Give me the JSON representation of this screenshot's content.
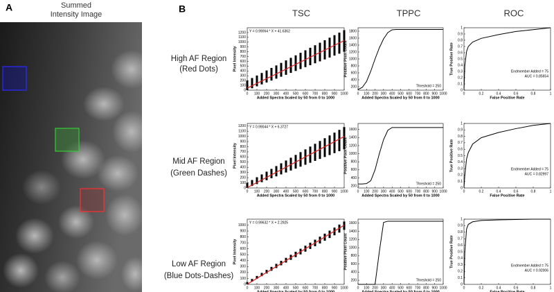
{
  "panel_a": {
    "letter": "A",
    "title": [
      "Summed",
      "Intensity Image"
    ]
  },
  "panel_b": {
    "letter": "B",
    "columns": [
      "TSC",
      "TPPC",
      "ROC"
    ],
    "rows": [
      {
        "label": [
          "High AF Region",
          "(Red Dots)"
        ]
      },
      {
        "label": [
          "Mid AF Region",
          "(Green Dashes)"
        ]
      },
      {
        "label": [
          "Low AF Region",
          "(Blue Dots-Dashes)"
        ]
      }
    ]
  },
  "chart_data": [
    {
      "type": "scatter",
      "xlabel": "Added Spectra Scaled by 50 from 0 to 1000",
      "ylabel": "Pixel Intensity",
      "annotations": [
        "Y = 0.99064 * X + 41.6362"
      ],
      "xlim": [
        0,
        1000
      ],
      "xticks": [
        0,
        100,
        200,
        300,
        400,
        500,
        600,
        700,
        800,
        900,
        1000
      ],
      "ylim": [
        0,
        1300
      ],
      "yticks": [
        0,
        100,
        200,
        300,
        400,
        500,
        600,
        700,
        800,
        900,
        1000,
        1100,
        1200
      ],
      "x": [
        0,
        50,
        100,
        150,
        200,
        250,
        300,
        350,
        400,
        450,
        500,
        550,
        600,
        650,
        700,
        750,
        800,
        850,
        900,
        950,
        1000
      ],
      "low": [
        0,
        40,
        80,
        120,
        160,
        200,
        240,
        280,
        320,
        360,
        400,
        440,
        480,
        520,
        560,
        600,
        640,
        680,
        720,
        760,
        800
      ],
      "high": [
        200,
        253,
        305,
        358,
        410,
        463,
        515,
        568,
        620,
        673,
        725,
        778,
        830,
        883,
        935,
        988,
        1040,
        1093,
        1145,
        1198,
        1250
      ],
      "fit_x": [
        0,
        1000
      ],
      "fit": [
        42,
        1033
      ],
      "color": "#000000",
      "fit_color": "#e02020"
    },
    {
      "type": "line",
      "xlabel": "Added Spectra Scaled by 50 from 0 to 1000",
      "ylabel": "Positive Pixel Count",
      "annotations": [
        "Threshold = 250"
      ],
      "xlim": [
        0,
        1000
      ],
      "xticks": [
        0,
        100,
        200,
        300,
        400,
        500,
        600,
        700,
        800,
        900,
        1000
      ],
      "ylim": [
        100,
        1900
      ],
      "yticks": [
        200,
        400,
        600,
        800,
        1000,
        1200,
        1400,
        1600,
        1800
      ],
      "x": [
        0,
        50,
        100,
        150,
        200,
        250,
        300,
        350,
        400,
        450,
        500,
        600,
        700,
        800,
        900,
        1000
      ],
      "values": [
        120,
        180,
        350,
        650,
        1000,
        1320,
        1580,
        1760,
        1840,
        1850,
        1850,
        1850,
        1850,
        1850,
        1850,
        1850
      ],
      "color": "#000000"
    },
    {
      "type": "line",
      "xlabel": "False Positive Rate",
      "ylabel": "True Positive Rate",
      "annotations": [
        "Endmember Added = 75",
        "AUC = 0.85654"
      ],
      "xlim": [
        0,
        1
      ],
      "xticks": [
        0,
        0.2,
        0.4,
        0.6,
        0.8,
        1
      ],
      "ylim": [
        0,
        1
      ],
      "yticks": [
        0,
        0.1,
        0.2,
        0.3,
        0.4,
        0.5,
        0.6,
        0.7,
        0.8,
        0.9,
        1
      ],
      "x": [
        0,
        0.01,
        0.03,
        0.05,
        0.1,
        0.2,
        0.4,
        0.6,
        0.8,
        1
      ],
      "values": [
        0,
        0.4,
        0.62,
        0.7,
        0.77,
        0.83,
        0.89,
        0.94,
        0.97,
        1
      ],
      "color": "#000000"
    },
    {
      "type": "scatter",
      "xlabel": "Added Spectra Scaled by 50 from 0 to 1000",
      "ylabel": "Pixel Intensity",
      "annotations": [
        "Y = 0.99044 * X + 6.3727"
      ],
      "xlim": [
        0,
        1000
      ],
      "xticks": [
        0,
        100,
        200,
        300,
        400,
        500,
        600,
        700,
        800,
        900,
        1000
      ],
      "ylim": [
        0,
        1250
      ],
      "yticks": [
        0,
        100,
        200,
        300,
        400,
        500,
        600,
        700,
        800,
        900,
        1000,
        1100,
        1200
      ],
      "x": [
        0,
        50,
        100,
        150,
        200,
        250,
        300,
        350,
        400,
        450,
        500,
        550,
        600,
        650,
        700,
        750,
        800,
        850,
        900,
        950,
        1000
      ],
      "low": [
        0,
        38,
        75,
        113,
        150,
        188,
        225,
        263,
        300,
        338,
        375,
        413,
        450,
        488,
        525,
        563,
        600,
        638,
        675,
        713,
        750
      ],
      "high": [
        100,
        154,
        208,
        262,
        316,
        370,
        424,
        478,
        532,
        586,
        640,
        694,
        748,
        802,
        856,
        910,
        964,
        1018,
        1072,
        1126,
        1180
      ],
      "fit_x": [
        0,
        1000
      ],
      "fit": [
        7,
        997
      ],
      "color": "#000000",
      "fit_color": "#e02020"
    },
    {
      "type": "line",
      "xlabel": "Added Spectra Scaled by 50 from 0 to 1000",
      "ylabel": "Positive Pixel Count",
      "annotations": [
        "Threshold = 250"
      ],
      "xlim": [
        0,
        1000
      ],
      "xticks": [
        0,
        100,
        200,
        300,
        400,
        500,
        600,
        700,
        800,
        900,
        1000
      ],
      "ylim": [
        150,
        1750
      ],
      "yticks": [
        200,
        400,
        600,
        800,
        1000,
        1200,
        1400,
        1600
      ],
      "x": [
        0,
        50,
        100,
        150,
        200,
        250,
        300,
        350,
        400,
        450,
        500,
        600,
        700,
        800,
        900,
        1000
      ],
      "values": [
        250,
        250,
        260,
        330,
        600,
        1000,
        1350,
        1580,
        1650,
        1650,
        1650,
        1650,
        1650,
        1650,
        1650,
        1650
      ],
      "color": "#000000"
    },
    {
      "type": "line",
      "xlabel": "False Positive Rate",
      "ylabel": "True Positive Rate",
      "annotations": [
        "Endmember Added = 75",
        "AUC = 0.82997"
      ],
      "xlim": [
        0,
        1
      ],
      "xticks": [
        0,
        0.2,
        0.4,
        0.6,
        0.8,
        1
      ],
      "ylim": [
        0,
        1
      ],
      "yticks": [
        0,
        0.1,
        0.2,
        0.3,
        0.4,
        0.5,
        0.6,
        0.7,
        0.8,
        0.9,
        1
      ],
      "x": [
        0,
        0.01,
        0.03,
        0.05,
        0.1,
        0.2,
        0.4,
        0.6,
        0.8,
        1
      ],
      "values": [
        0,
        0.2,
        0.45,
        0.55,
        0.68,
        0.78,
        0.86,
        0.92,
        0.97,
        1
      ],
      "color": "#000000"
    },
    {
      "type": "scatter",
      "xlabel": "Added Spectra Scaled by 50 from 0 to 1000",
      "ylabel": "Pixel Intensity",
      "annotations": [
        "Y = 0.99632 * X + 2.2925"
      ],
      "xlim": [
        0,
        1000
      ],
      "xticks": [
        0,
        100,
        200,
        300,
        400,
        500,
        600,
        700,
        800,
        900,
        1000
      ],
      "ylim": [
        0,
        1100
      ],
      "yticks": [
        0,
        100,
        200,
        300,
        400,
        500,
        600,
        700,
        800,
        900,
        1000
      ],
      "x": [
        0,
        50,
        100,
        150,
        200,
        250,
        300,
        350,
        400,
        450,
        500,
        550,
        600,
        650,
        700,
        750,
        800,
        850,
        900,
        950,
        1000
      ],
      "low": [
        0,
        46,
        92,
        138,
        184,
        230,
        276,
        322,
        368,
        414,
        460,
        506,
        552,
        598,
        644,
        690,
        736,
        782,
        828,
        874,
        920
      ],
      "high": [
        40,
        91,
        142,
        193,
        244,
        295,
        346,
        397,
        448,
        499,
        550,
        601,
        652,
        703,
        754,
        805,
        856,
        907,
        958,
        1009,
        1060
      ],
      "fit_x": [
        0,
        1000
      ],
      "fit": [
        2,
        999
      ],
      "color": "#000000",
      "fit_color": "#e02020"
    },
    {
      "type": "line",
      "xlabel": "Added Spectra Scaled by 50 from 0 to 1000",
      "ylabel": "Positive Pixel Count",
      "annotations": [
        "Threshold = 250"
      ],
      "xlim": [
        0,
        1000
      ],
      "xticks": [
        0,
        100,
        200,
        300,
        400,
        500,
        600,
        700,
        800,
        900,
        1000
      ],
      "ylim": [
        100,
        1700
      ],
      "yticks": [
        200,
        400,
        600,
        800,
        1000,
        1200,
        1400,
        1600
      ],
      "x": [
        0,
        50,
        100,
        150,
        200,
        250,
        300,
        350,
        400,
        450,
        500,
        600,
        700,
        800,
        900,
        1000
      ],
      "values": [
        100,
        100,
        100,
        100,
        100,
        900,
        1620,
        1650,
        1650,
        1650,
        1650,
        1650,
        1650,
        1650,
        1650,
        1650
      ],
      "color": "#000000"
    },
    {
      "type": "line",
      "xlabel": "False Positive Rate",
      "ylabel": "True Positive Rate",
      "annotations": [
        "Endmember Added = 75",
        "AUC = 0.92006"
      ],
      "xlim": [
        0,
        1
      ],
      "xticks": [
        0,
        0.2,
        0.4,
        0.6,
        0.8,
        1
      ],
      "ylim": [
        0,
        1
      ],
      "yticks": [
        0,
        0.1,
        0.2,
        0.3,
        0.4,
        0.5,
        0.6,
        0.7,
        0.8,
        0.9,
        1
      ],
      "x": [
        0,
        0.01,
        0.03,
        0.05,
        0.1,
        0.2,
        0.4,
        0.6,
        0.8,
        1
      ],
      "values": [
        0,
        0.5,
        0.85,
        0.92,
        0.96,
        0.98,
        0.99,
        0.995,
        1,
        1
      ],
      "color": "#000000"
    }
  ]
}
